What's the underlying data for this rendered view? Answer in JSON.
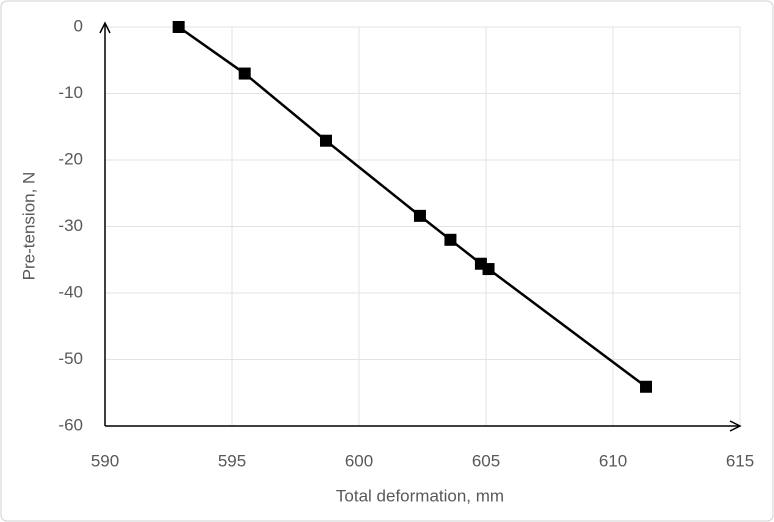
{
  "chart_data": {
    "type": "line",
    "x_label": "Total deformation, mm",
    "y_label": "Pre-tension, N",
    "x": [
      592.9,
      595.5,
      598.7,
      602.4,
      603.6,
      604.8,
      605.1,
      611.3
    ],
    "values": [
      0,
      -7,
      -17.1,
      -28.4,
      -32.0,
      -35.6,
      -36.4,
      -54.1
    ],
    "color": "#000000",
    "marker": "square",
    "xlim": [
      590,
      615
    ],
    "xticks": [
      590,
      595,
      600,
      605,
      610,
      615
    ],
    "ylim": [
      -60,
      0
    ],
    "yticks": [
      0,
      -10,
      -20,
      -30,
      -40,
      -50,
      -60
    ],
    "grid": true
  }
}
